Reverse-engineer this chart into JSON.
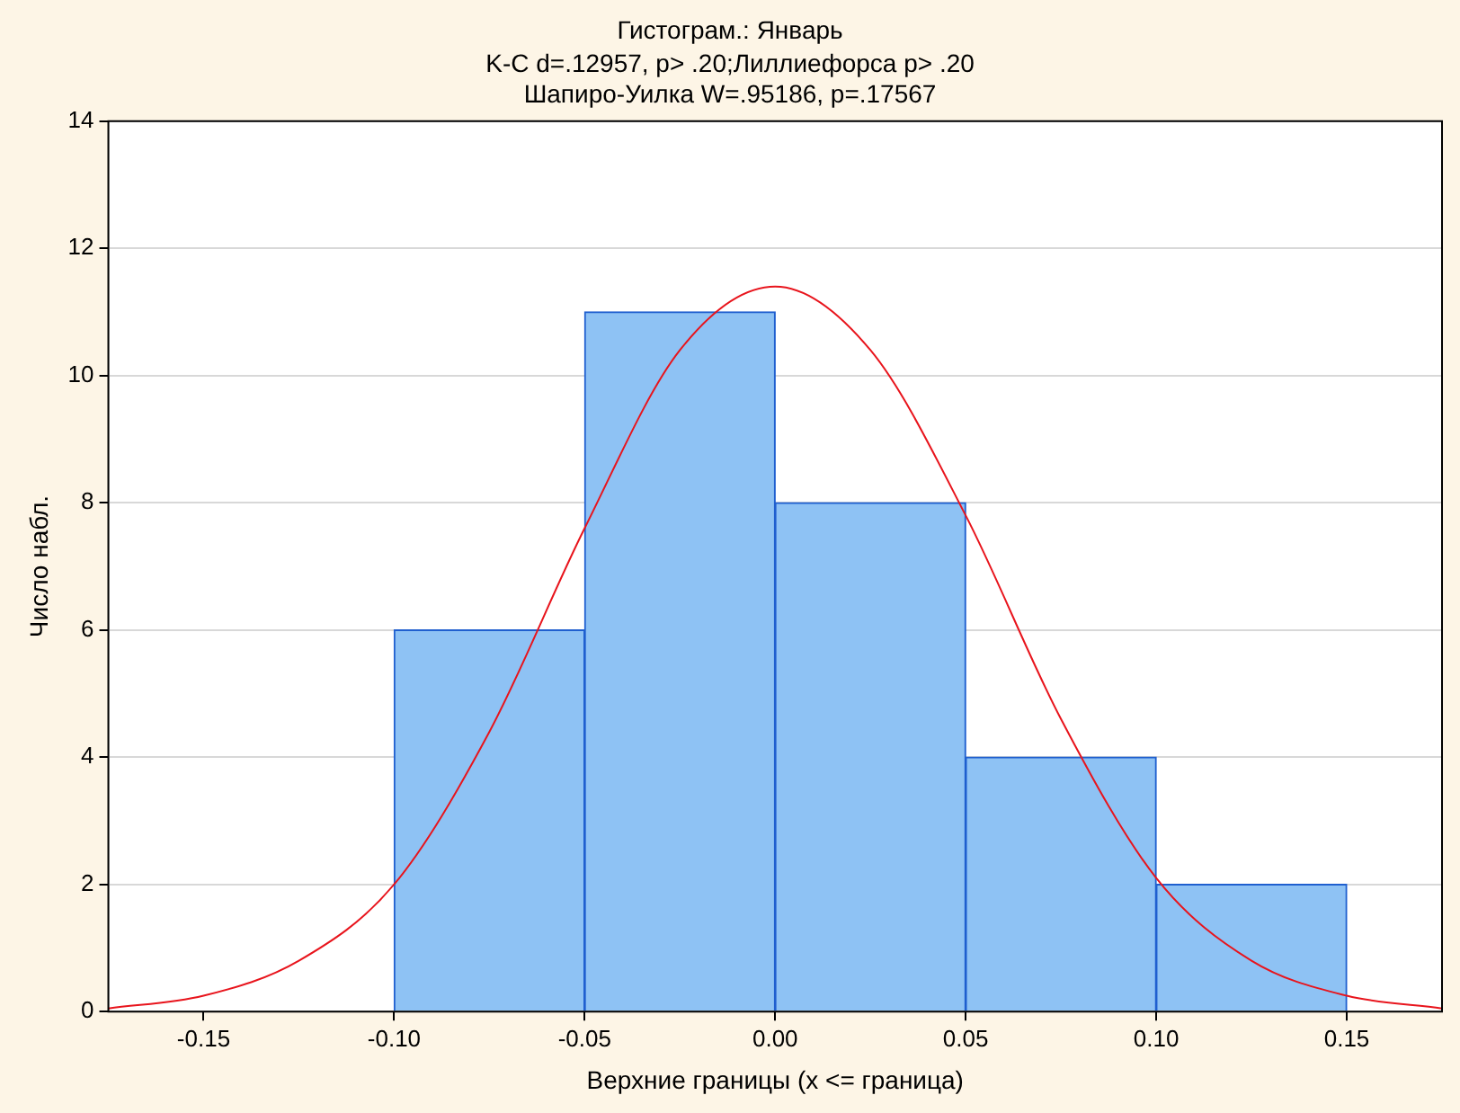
{
  "chart_data": {
    "type": "histogram",
    "title": "Гистограм.: Январь",
    "subtitle": "K-C d=.12957, p> .20;Лиллиефорса p> .20\nШапиро-Уилка W=.95186, p=.17567",
    "xlabel": "Верхние границы (x <= граница)",
    "ylabel": "Число набл.",
    "bins": [
      -0.1,
      -0.05,
      0,
      0.05,
      0.1,
      0.15
    ],
    "values": [
      6,
      11,
      8,
      4,
      2
    ],
    "color": "#8ec2f4",
    "series": [
      {
        "type": "line",
        "color": "#e8141c",
        "marker": "none",
        "x": [
          -0.175,
          -0.15,
          -0.125,
          -0.1,
          -0.075,
          -0.05,
          -0.025,
          0,
          0.025,
          0.05,
          0.075,
          0.1,
          0.125,
          0.15,
          0.175
        ],
        "values": [
          0.05,
          0.25,
          0.8,
          2.0,
          4.4,
          7.6,
          10.4,
          11.4,
          10.4,
          7.8,
          4.6,
          2.1,
          0.8,
          0.25,
          0.05
        ]
      }
    ],
    "xlim": [
      -0.175,
      0.175
    ],
    "xticks": [
      {
        "value": -0.15,
        "label": "-0.15"
      },
      {
        "value": -0.1,
        "label": "-0.10"
      },
      {
        "value": -0.05,
        "label": "-0.05"
      },
      {
        "value": 0,
        "label": "0.00"
      },
      {
        "value": 0.05,
        "label": "0.05"
      },
      {
        "value": 0.1,
        "label": "0.10"
      },
      {
        "value": 0.15,
        "label": "0.15"
      }
    ],
    "ylim": [
      0,
      14
    ],
    "yticks": [
      0,
      2,
      4,
      6,
      8,
      10,
      12,
      14
    ],
    "grid": "y",
    "legend": false
  }
}
